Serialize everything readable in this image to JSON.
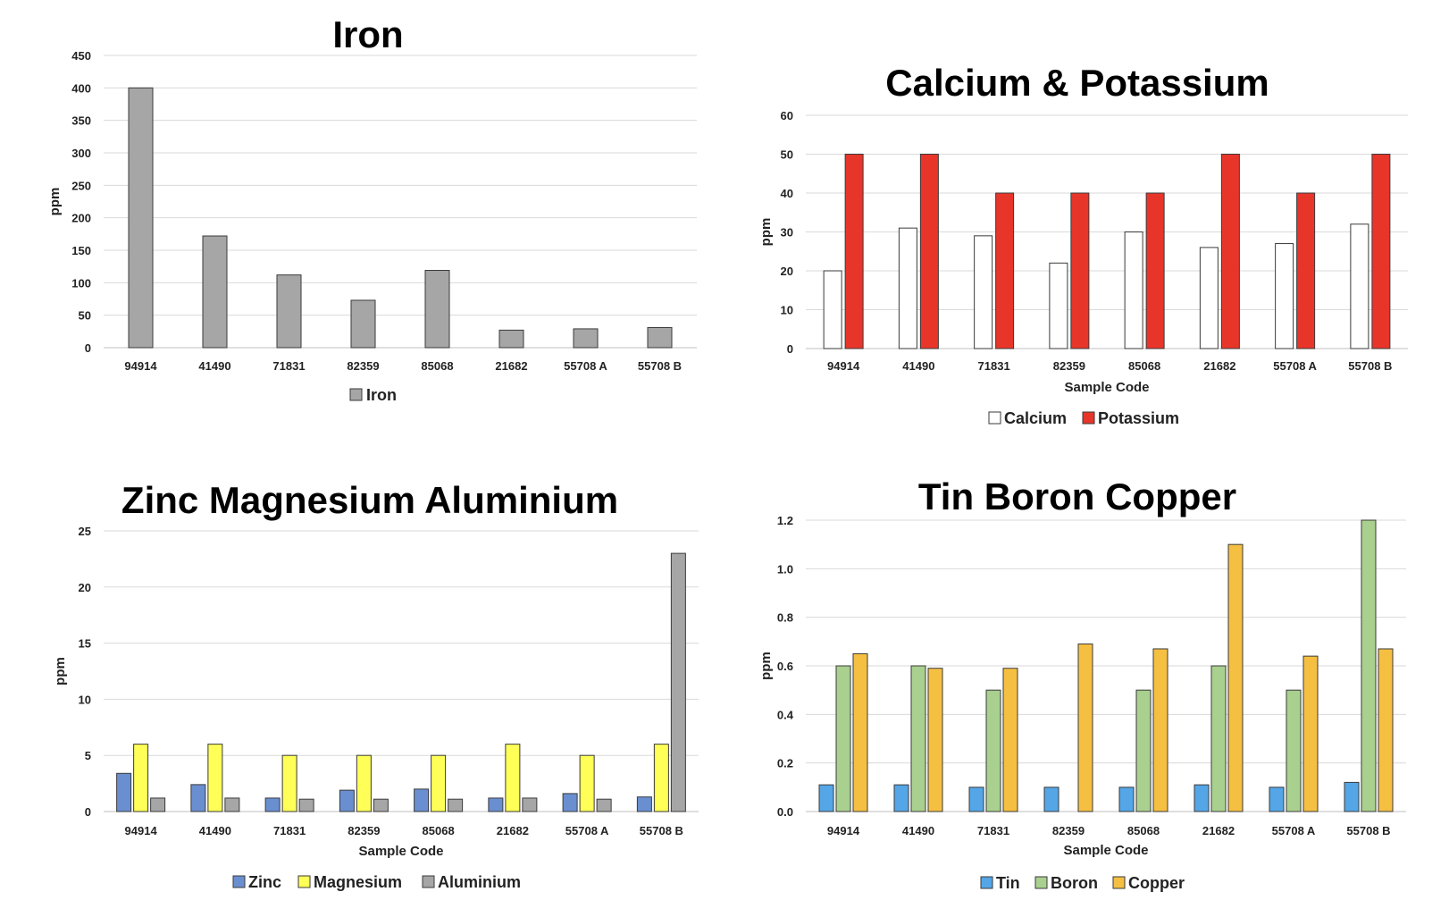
{
  "chart_data": [
    {
      "type": "bar",
      "title": "Iron",
      "xlabel": "",
      "ylabel": "ppm",
      "categories": [
        "94914",
        "41490",
        "71831",
        "82359",
        "85068",
        "21682",
        "55708 A",
        "55708 B"
      ],
      "ylim": [
        0,
        450
      ],
      "yticks": [
        "0",
        "50",
        "100",
        "150",
        "200",
        "250",
        "300",
        "350",
        "400",
        "450"
      ],
      "grid": true,
      "legend": "bottom",
      "series": [
        {
          "name": "Iron",
          "color": "#a6a6a6",
          "values": [
            400,
            172,
            112,
            73,
            119,
            27,
            29,
            31
          ]
        }
      ]
    },
    {
      "type": "bar",
      "title": "Calcium & Potassium",
      "xlabel": "Sample Code",
      "ylabel": "ppm",
      "categories": [
        "94914",
        "41490",
        "71831",
        "82359",
        "85068",
        "21682",
        "55708 A",
        "55708 B"
      ],
      "ylim": [
        0,
        60
      ],
      "yticks": [
        "0",
        "10",
        "20",
        "30",
        "40",
        "50",
        "60"
      ],
      "grid": true,
      "legend": "bottom",
      "series": [
        {
          "name": "Calcium",
          "color": "#ffffff",
          "values": [
            20,
            31,
            29,
            22,
            30,
            26,
            27,
            32
          ]
        },
        {
          "name": "Potassium",
          "color": "#e8352a",
          "values": [
            50,
            50,
            40,
            40,
            40,
            50,
            40,
            50
          ]
        }
      ]
    },
    {
      "type": "bar",
      "title": "Zinc  Magnesium  Aluminium",
      "xlabel": "Sample Code",
      "ylabel": "ppm",
      "categories": [
        "94914",
        "41490",
        "71831",
        "82359",
        "85068",
        "21682",
        "55708 A",
        "55708 B"
      ],
      "ylim": [
        0,
        25
      ],
      "yticks": [
        "0",
        "5",
        "10",
        "15",
        "20",
        "25"
      ],
      "grid": true,
      "legend": "bottom",
      "series": [
        {
          "name": "Zinc",
          "color": "#6a8fd0",
          "values": [
            3.4,
            2.4,
            1.2,
            1.9,
            2.0,
            1.2,
            1.6,
            1.3
          ]
        },
        {
          "name": "Magnesium",
          "color": "#ffff57",
          "values": [
            6,
            6,
            5,
            5,
            5,
            6,
            5,
            6
          ]
        },
        {
          "name": "Aluminium",
          "color": "#a6a6a6",
          "values": [
            1.2,
            1.2,
            1.1,
            1.1,
            1.1,
            1.2,
            1.1,
            23
          ]
        }
      ]
    },
    {
      "type": "bar",
      "title": "Tin Boron Copper",
      "xlabel": "Sample Code",
      "ylabel": "ppm",
      "categories": [
        "94914",
        "41490",
        "71831",
        "82359",
        "85068",
        "21682",
        "55708 A",
        "55708 B"
      ],
      "ylim": [
        0,
        1.2
      ],
      "yticks": [
        "0.0",
        "0.2",
        "0.4",
        "0.6",
        "0.8",
        "1.0",
        "1.2"
      ],
      "grid": true,
      "legend": "bottom",
      "series": [
        {
          "name": "Tin",
          "color": "#54a6e6",
          "values": [
            0.11,
            0.11,
            0.1,
            0.1,
            0.1,
            0.11,
            0.1,
            0.12
          ]
        },
        {
          "name": "Boron",
          "color": "#a9d08e",
          "values": [
            0.6,
            0.6,
            0.5,
            0,
            0.5,
            0.6,
            0.5,
            1.2
          ]
        },
        {
          "name": "Copper",
          "color": "#f5bf42",
          "values": [
            0.65,
            0.59,
            0.59,
            0.69,
            0.67,
            1.1,
            0.64,
            0.67
          ]
        }
      ]
    }
  ]
}
